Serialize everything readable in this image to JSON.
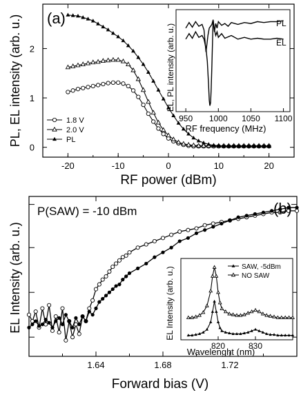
{
  "chart_data": [
    {
      "panel_label": "(a)",
      "type": "line",
      "xlabel": "RF power (dBm)",
      "ylabel": "PL, EL intensity (arb. u.)",
      "xlim": [
        -25,
        25
      ],
      "ylim": [
        -0.2,
        2.9
      ],
      "xticks": [
        "-20",
        "-10",
        "0",
        "10",
        "20"
      ],
      "yticks": [
        "0",
        "1",
        "2"
      ],
      "legend_position": "lower-left",
      "series": [
        {
          "name": "1.8 V",
          "marker": "open-circle",
          "x": [
            -20,
            -19,
            -18,
            -17,
            -16,
            -15,
            -14,
            -13,
            -12,
            -11,
            -10,
            -9,
            -8,
            -7,
            -6,
            -5,
            -4,
            -3,
            -2,
            -1,
            0,
            1,
            2,
            3,
            4,
            5,
            6,
            7,
            8,
            9,
            10,
            11,
            12,
            13,
            14,
            15,
            16,
            17,
            18,
            19,
            20
          ],
          "y": [
            1.12,
            1.15,
            1.18,
            1.2,
            1.22,
            1.24,
            1.26,
            1.28,
            1.3,
            1.31,
            1.31,
            1.29,
            1.24,
            1.15,
            1.02,
            0.86,
            0.68,
            0.52,
            0.38,
            0.27,
            0.18,
            0.12,
            0.08,
            0.05,
            0.03,
            0.02,
            0.02,
            0.02,
            0.02,
            0.02,
            0.02,
            0.02,
            0.02,
            0.02,
            0.02,
            0.02,
            0.02,
            0.02,
            0.02,
            0.02,
            0.02
          ]
        },
        {
          "name": "2.0 V",
          "marker": "open-triangle",
          "x": [
            -20,
            -19,
            -18,
            -17,
            -16,
            -15,
            -14,
            -13,
            -12,
            -11,
            -10,
            -9,
            -8,
            -7,
            -6,
            -5,
            -4,
            -3,
            -2,
            -1,
            0,
            1,
            2,
            3,
            4,
            5,
            6,
            7,
            8,
            9,
            10,
            11,
            12,
            13,
            14,
            15,
            16,
            17,
            18,
            19,
            20
          ],
          "y": [
            1.62,
            1.64,
            1.66,
            1.68,
            1.7,
            1.72,
            1.73,
            1.75,
            1.76,
            1.77,
            1.77,
            1.74,
            1.68,
            1.56,
            1.38,
            1.16,
            0.92,
            0.7,
            0.5,
            0.35,
            0.24,
            0.16,
            0.1,
            0.07,
            0.05,
            0.04,
            0.03,
            0.03,
            0.03,
            0.03,
            0.03,
            0.03,
            0.03,
            0.03,
            0.03,
            0.03,
            0.03,
            0.03,
            0.03,
            0.03,
            0.03
          ]
        },
        {
          "name": "PL",
          "marker": "filled-triangle",
          "x": [
            -20,
            -19,
            -18,
            -17,
            -16,
            -15,
            -14,
            -13,
            -12,
            -11,
            -10,
            -9,
            -8,
            -7,
            -6,
            -5,
            -4,
            -3,
            -2,
            -1,
            0,
            1,
            2,
            3,
            4,
            5,
            6,
            7,
            8,
            9,
            10,
            11,
            12,
            13,
            14,
            15,
            16,
            17,
            18,
            19,
            20
          ],
          "y": [
            2.68,
            2.67,
            2.66,
            2.63,
            2.6,
            2.56,
            2.5,
            2.44,
            2.38,
            2.31,
            2.24,
            2.16,
            2.06,
            1.95,
            1.82,
            1.68,
            1.52,
            1.34,
            1.16,
            0.98,
            0.8,
            0.64,
            0.49,
            0.37,
            0.27,
            0.19,
            0.13,
            0.09,
            0.06,
            0.04,
            0.03,
            0.02,
            0.02,
            0.02,
            0.02,
            0.02,
            0.02,
            0.02,
            0.02,
            0.02,
            0.02
          ]
        }
      ],
      "inset": {
        "type": "line",
        "xlabel": "RF frequency (MHz)",
        "ylabel": "EL, PL intensity (arb. u.)",
        "xlim": [
          935,
          1110
        ],
        "xticks": [
          "950",
          "1000",
          "1050",
          "1100"
        ],
        "series": [
          {
            "name": "PL",
            "x": [
              950,
              955,
              960,
              965,
              970,
              975,
              978,
              981,
              984,
              986,
              988,
              990,
              992,
              994,
              996,
              998,
              1000,
              1005,
              1010,
              1015,
              1020,
              1030,
              1040,
              1050,
              1060,
              1070,
              1080,
              1090,
              1100
            ],
            "y": [
              0.86,
              0.92,
              0.87,
              0.93,
              0.88,
              0.9,
              0.84,
              0.6,
              0.78,
              0.86,
              0.88,
              0.9,
              0.95,
              0.82,
              0.91,
              0.86,
              0.93,
              0.89,
              0.91,
              0.88,
              0.92,
              0.9,
              0.92,
              0.91,
              0.93,
              0.92,
              0.93,
              0.93,
              0.94
            ]
          },
          {
            "name": "EL",
            "x": [
              950,
              955,
              960,
              965,
              970,
              975,
              978,
              981,
              983,
              985,
              986,
              987,
              988,
              989,
              990,
              991,
              992,
              994,
              996,
              998,
              1000,
              1005,
              1010,
              1020,
              1030,
              1040,
              1050,
              1060,
              1070,
              1080,
              1090,
              1100
            ],
            "y": [
              0.74,
              0.8,
              0.75,
              0.82,
              0.76,
              0.78,
              0.74,
              0.64,
              0.5,
              0.25,
              0.08,
              0.02,
              0.05,
              0.2,
              0.45,
              0.7,
              0.95,
              0.84,
              0.78,
              0.82,
              0.76,
              0.8,
              0.75,
              0.78,
              0.74,
              0.76,
              0.74,
              0.75,
              0.74,
              0.74,
              0.75,
              0.74
            ]
          }
        ]
      }
    },
    {
      "panel_label": "(b)",
      "type": "scatter",
      "xlabel": "Forward bias (V)",
      "ylabel": "EL Intensity (arb. u.)",
      "annotation": "P(SAW) = -10 dBm",
      "xlim": [
        1.6,
        1.76
      ],
      "ylim_relative": [
        0,
        1
      ],
      "xticks": [
        "1.64",
        "1.68",
        "1.72"
      ],
      "series": [
        {
          "marker": "open-circle",
          "x": [
            1.6,
            1.602,
            1.604,
            1.606,
            1.608,
            1.61,
            1.612,
            1.614,
            1.616,
            1.618,
            1.62,
            1.622,
            1.624,
            1.626,
            1.628,
            1.63,
            1.632,
            1.634,
            1.636,
            1.638,
            1.64,
            1.642,
            1.644,
            1.646,
            1.648,
            1.65,
            1.652,
            1.654,
            1.656,
            1.658,
            1.66,
            1.665,
            1.67,
            1.675,
            1.68,
            1.685,
            1.69,
            1.695,
            1.7,
            1.705,
            1.71,
            1.715,
            1.72,
            1.725,
            1.73,
            1.735,
            1.74,
            1.745,
            1.75,
            1.755,
            1.76
          ],
          "y": [
            0.26,
            0.22,
            0.28,
            0.18,
            0.3,
            0.2,
            0.32,
            0.16,
            0.25,
            0.15,
            0.3,
            0.1,
            0.22,
            0.12,
            0.2,
            0.14,
            0.25,
            0.22,
            0.3,
            0.35,
            0.42,
            0.45,
            0.48,
            0.5,
            0.53,
            0.56,
            0.58,
            0.6,
            0.62,
            0.63,
            0.65,
            0.68,
            0.7,
            0.72,
            0.74,
            0.76,
            0.78,
            0.79,
            0.8,
            0.82,
            0.83,
            0.84,
            0.85,
            0.86,
            0.87,
            0.88,
            0.89,
            0.9,
            0.9,
            0.91,
            0.91
          ]
        },
        {
          "marker": "filled-circle",
          "x": [
            1.6,
            1.602,
            1.604,
            1.606,
            1.608,
            1.61,
            1.612,
            1.614,
            1.616,
            1.618,
            1.62,
            1.622,
            1.624,
            1.626,
            1.628,
            1.63,
            1.632,
            1.634,
            1.636,
            1.638,
            1.64,
            1.642,
            1.644,
            1.646,
            1.648,
            1.65,
            1.652,
            1.654,
            1.656,
            1.658,
            1.66,
            1.665,
            1.67,
            1.675,
            1.68,
            1.685,
            1.69,
            1.695,
            1.7,
            1.705,
            1.71,
            1.715,
            1.72,
            1.725,
            1.73,
            1.735,
            1.74,
            1.745,
            1.75,
            1.755,
            1.76
          ],
          "y": [
            0.18,
            0.2,
            0.22,
            0.19,
            0.2,
            0.23,
            0.21,
            0.18,
            0.22,
            0.24,
            0.2,
            0.26,
            0.22,
            0.18,
            0.24,
            0.2,
            0.25,
            0.22,
            0.28,
            0.26,
            0.3,
            0.34,
            0.36,
            0.38,
            0.4,
            0.42,
            0.44,
            0.45,
            0.48,
            0.5,
            0.52,
            0.55,
            0.58,
            0.62,
            0.65,
            0.68,
            0.72,
            0.74,
            0.77,
            0.79,
            0.81,
            0.83,
            0.85,
            0.87,
            0.88,
            0.89,
            0.9,
            0.91,
            0.92,
            0.93,
            0.93
          ]
        }
      ],
      "inset": {
        "type": "line",
        "xlabel": "Wavelenght (nm)",
        "ylabel": "EL Intensity (arb. u.)",
        "xlim": [
          810,
          840
        ],
        "xticks": [
          "820",
          "830"
        ],
        "legend_position": "top",
        "series": [
          {
            "name": "SAW, -5dBm",
            "marker": "filled-triangle",
            "x": [
              812,
              813,
              814,
              815,
              816,
              817,
              818,
              818.5,
              819,
              819.5,
              820,
              820.5,
              821,
              822,
              823,
              824,
              825,
              826,
              827,
              828,
              829,
              830,
              831,
              832,
              833,
              834,
              835,
              836,
              837,
              838,
              839,
              840
            ],
            "y": [
              0.06,
              0.06,
              0.07,
              0.08,
              0.1,
              0.14,
              0.24,
              0.38,
              0.52,
              0.38,
              0.24,
              0.16,
              0.12,
              0.1,
              0.09,
              0.08,
              0.08,
              0.08,
              0.09,
              0.1,
              0.12,
              0.14,
              0.12,
              0.1,
              0.08,
              0.07,
              0.07,
              0.06,
              0.06,
              0.06,
              0.06,
              0.06
            ]
          },
          {
            "name": "NO SAW",
            "marker": "open-triangle",
            "x": [
              812,
              813,
              814,
              815,
              816,
              817,
              818,
              818.5,
              819,
              819.5,
              820,
              820.5,
              821,
              822,
              823,
              824,
              825,
              826,
              827,
              828,
              829,
              830,
              831,
              832,
              833,
              834,
              835,
              836,
              837,
              838,
              839,
              840
            ],
            "y": [
              0.3,
              0.3,
              0.31,
              0.33,
              0.37,
              0.46,
              0.66,
              0.86,
              0.98,
              0.86,
              0.64,
              0.5,
              0.42,
              0.38,
              0.35,
              0.34,
              0.33,
              0.33,
              0.34,
              0.36,
              0.38,
              0.4,
              0.38,
              0.35,
              0.33,
              0.32,
              0.31,
              0.3,
              0.3,
              0.3,
              0.3,
              0.3
            ]
          }
        ]
      }
    }
  ]
}
